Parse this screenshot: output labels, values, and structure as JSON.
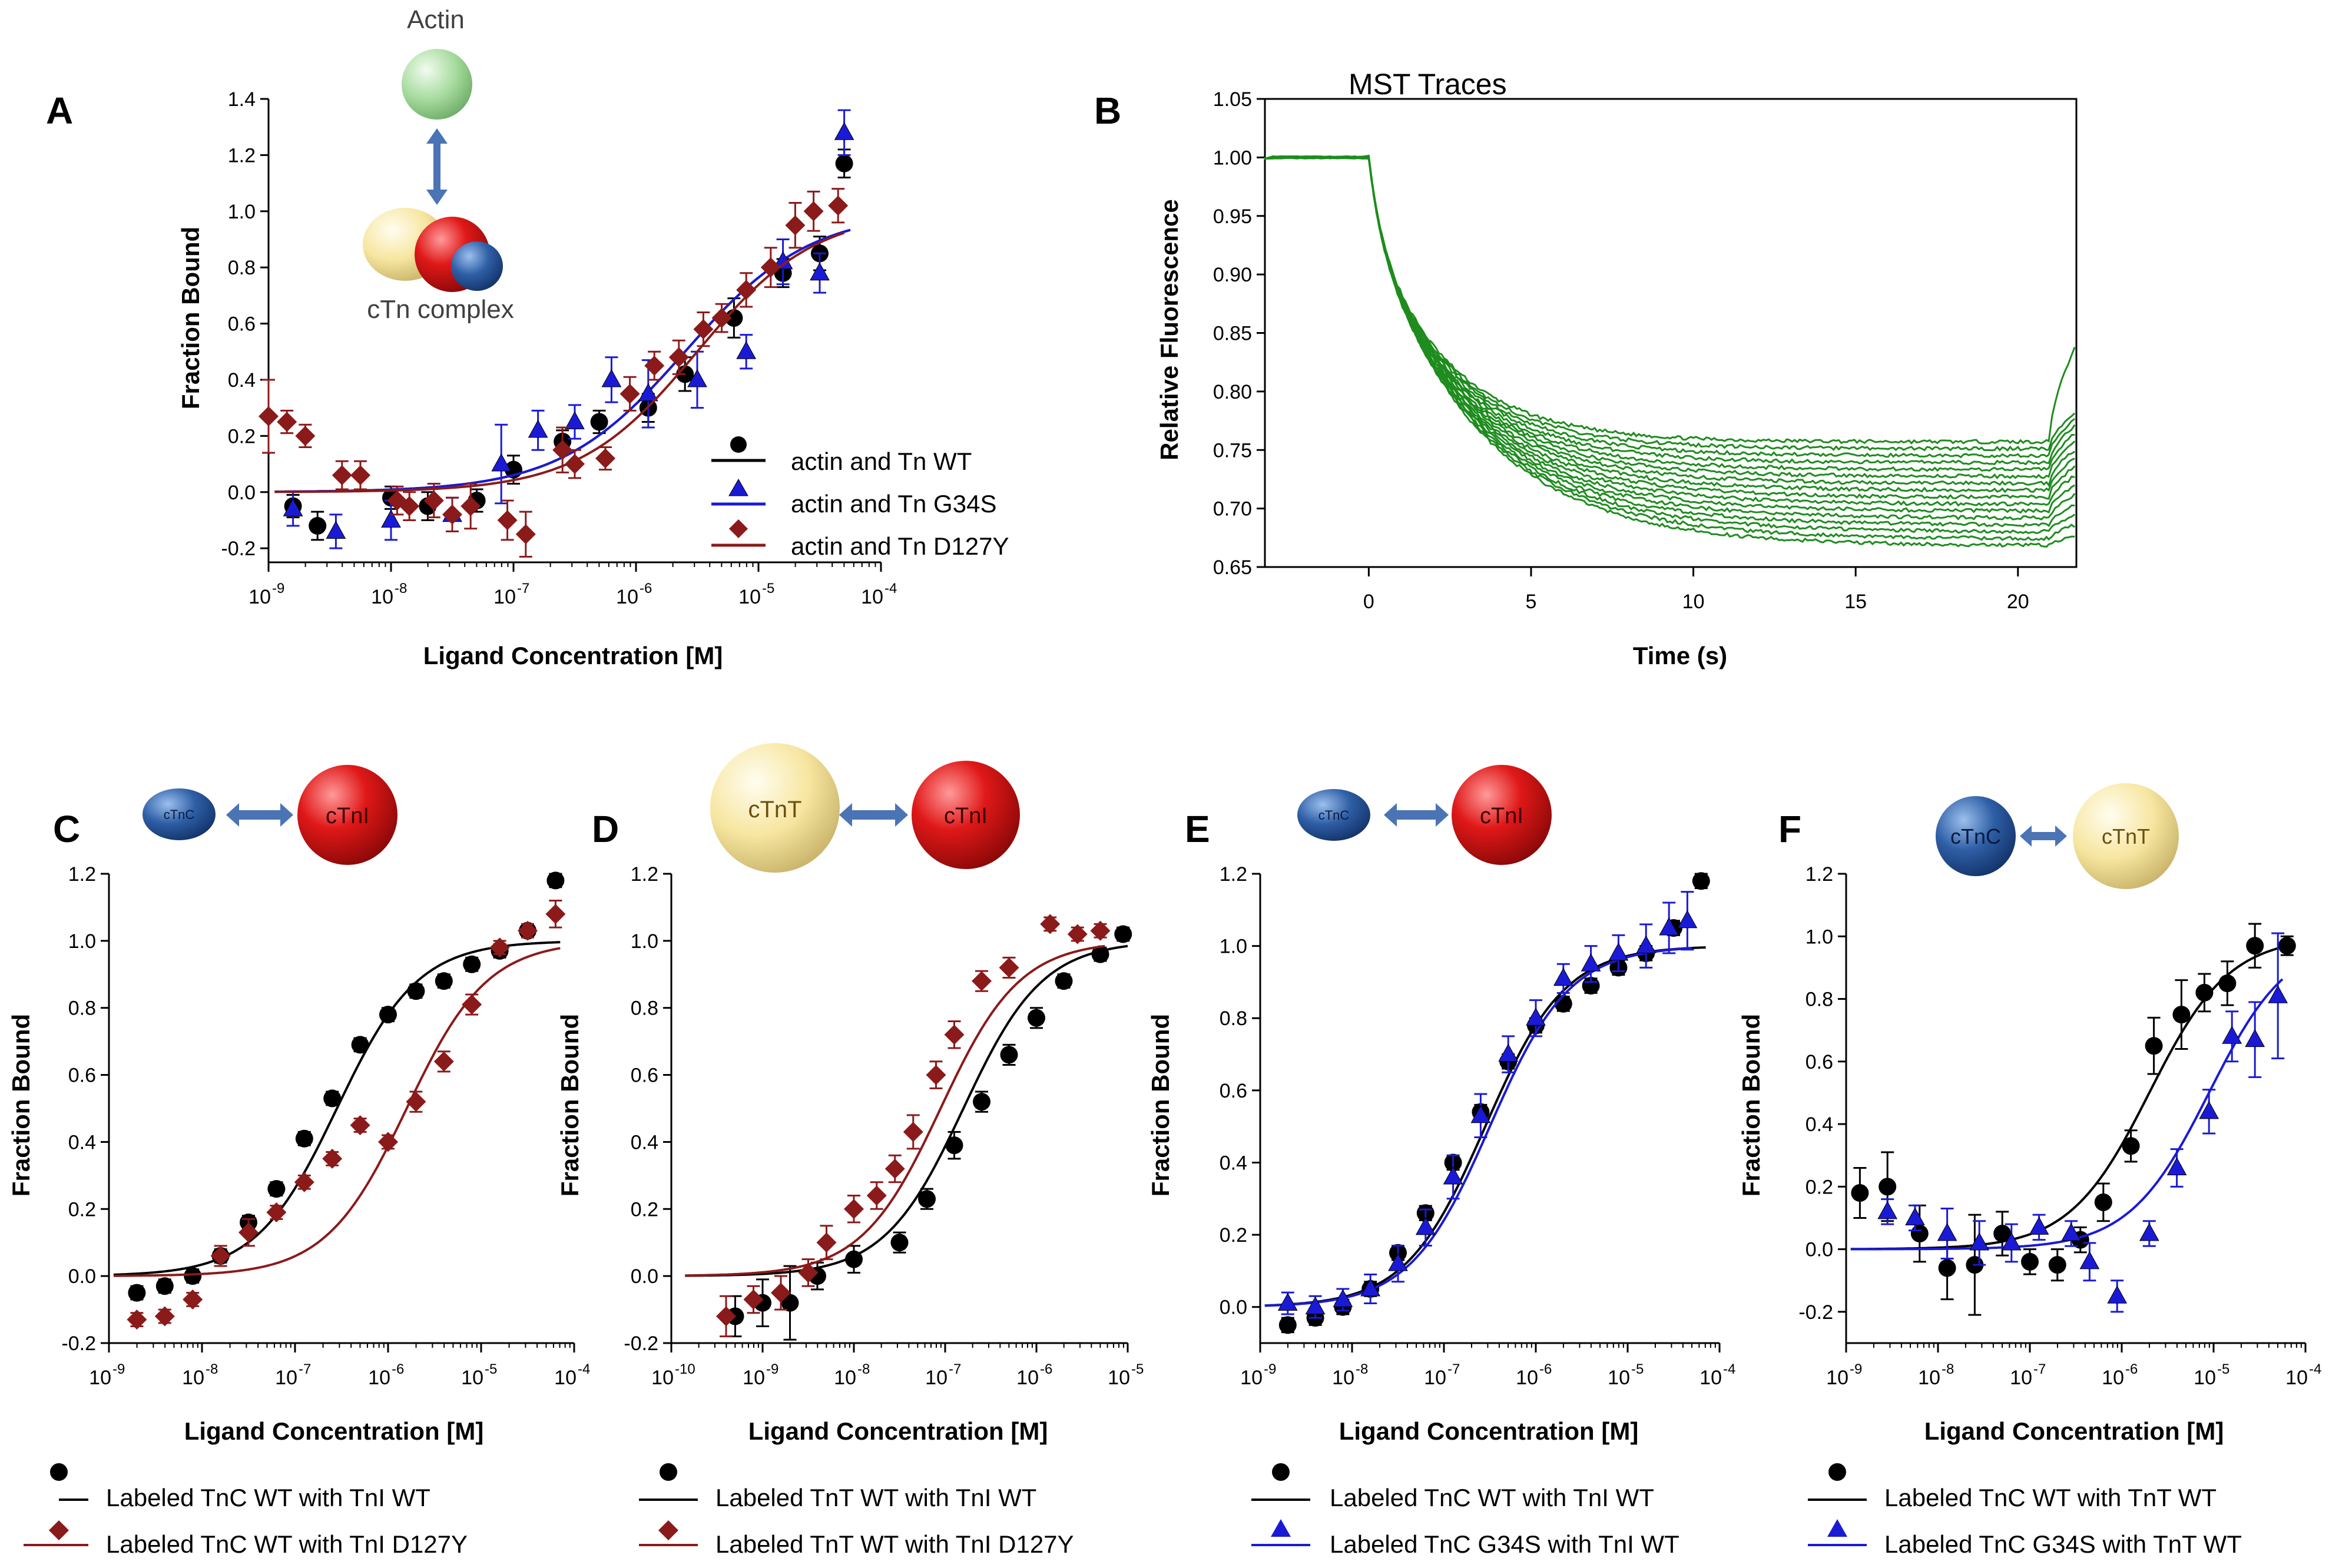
{
  "colors": {
    "black": "#000000",
    "darkred": "#8b1a1a",
    "blue": "#1a1ad6",
    "navy": "#1e3b8c",
    "green": "#1e8c1e",
    "actin_fill": "#a8dca0",
    "tnc_fill": "#2f5fa6",
    "tni_fill": "#d41414",
    "tnt_fill": "#f7e6a0",
    "arrow": "#4a74b4"
  },
  "chart_data": [
    {
      "id": "A",
      "type": "scatter",
      "panel_label": "A",
      "xlabel": "Ligand Concentration [M]",
      "ylabel": "Fraction Bound",
      "xscale": "log",
      "xlim_log10": [
        -9,
        -4
      ],
      "xtick_exponents": [
        -9,
        -8,
        -7,
        -6,
        -5,
        -4
      ],
      "ylim": [
        -0.25,
        1.4
      ],
      "yticks": [
        -0.2,
        0.0,
        0.2,
        0.4,
        0.6,
        0.8,
        1.0,
        1.2,
        1.4
      ],
      "ytick_labels": [
        "-0.2",
        "0.0",
        "0.2",
        "0.4",
        "0.6",
        "0.8",
        "1.0",
        "1.2",
        "1.4"
      ],
      "inset": {
        "top_label": "Actin",
        "bottom_label": "cTn complex"
      },
      "legend_position": "bottom-right",
      "series": [
        {
          "name": "actin and Tn WT",
          "color_key": "black",
          "marker": "circle",
          "x_log10": [
            -8.8,
            -8.6,
            -8.0,
            -7.7,
            -7.3,
            -7.0,
            -6.6,
            -6.3,
            -5.9,
            -5.6,
            -5.2,
            -4.8,
            -4.5,
            -4.3
          ],
          "y": [
            -0.05,
            -0.12,
            -0.02,
            -0.05,
            -0.03,
            0.08,
            0.18,
            0.25,
            0.3,
            0.42,
            0.62,
            0.78,
            0.85,
            1.17
          ],
          "err": [
            0.04,
            0.05,
            0.04,
            0.05,
            0.04,
            0.05,
            0.04,
            0.04,
            0.05,
            0.06,
            0.07,
            0.05,
            0.06,
            0.05
          ],
          "fit": {
            "top": 1.0,
            "bottom": 0.0,
            "log_ec50": -5.6,
            "hill": 0.85
          }
        },
        {
          "name": "actin and Tn G34S",
          "color_key": "blue",
          "marker": "triangle",
          "x_log10": [
            -8.8,
            -8.45,
            -8.0,
            -7.5,
            -7.1,
            -6.8,
            -6.5,
            -6.2,
            -5.9,
            -5.5,
            -5.1,
            -4.8,
            -4.5,
            -4.3
          ],
          "y": [
            -0.06,
            -0.14,
            -0.1,
            -0.08,
            0.1,
            0.22,
            0.25,
            0.4,
            0.35,
            0.4,
            0.5,
            0.82,
            0.78,
            1.28
          ],
          "err": [
            0.06,
            0.06,
            0.07,
            0.06,
            0.14,
            0.07,
            0.06,
            0.08,
            0.12,
            0.1,
            0.06,
            0.08,
            0.07,
            0.08
          ],
          "fit": {
            "top": 1.0,
            "bottom": 0.0,
            "log_ec50": -5.6,
            "hill": 0.85
          }
        },
        {
          "name": "actin and Tn D127Y",
          "color_key": "darkred",
          "marker": "diamond",
          "x_log10": [
            -9.0,
            -8.85,
            -8.7,
            -8.4,
            -8.25,
            -7.95,
            -7.85,
            -7.65,
            -7.5,
            -7.35,
            -7.05,
            -6.9,
            -6.6,
            -6.5,
            -6.25,
            -6.05,
            -5.85,
            -5.65,
            -5.45,
            -5.3,
            -5.1,
            -4.9,
            -4.7,
            -4.55,
            -4.35
          ],
          "y": [
            0.27,
            0.25,
            0.2,
            0.06,
            0.06,
            -0.03,
            -0.05,
            -0.03,
            -0.08,
            -0.05,
            -0.1,
            -0.15,
            0.15,
            0.1,
            0.12,
            0.35,
            0.45,
            0.48,
            0.58,
            0.62,
            0.72,
            0.8,
            0.95,
            1.0,
            1.02
          ],
          "err": [
            0.13,
            0.04,
            0.04,
            0.05,
            0.05,
            0.05,
            0.05,
            0.06,
            0.06,
            0.08,
            0.07,
            0.08,
            0.08,
            0.05,
            0.04,
            0.06,
            0.05,
            0.06,
            0.06,
            0.05,
            0.06,
            0.07,
            0.08,
            0.07,
            0.06
          ],
          "fit": {
            "top": 1.0,
            "bottom": 0.0,
            "log_ec50": -5.5,
            "hill": 0.9
          }
        }
      ]
    },
    {
      "id": "B",
      "type": "line",
      "panel_label": "B",
      "title": "MST Traces",
      "xlabel": "Time (s)",
      "ylabel": "Relative Fluorescence",
      "xlim": [
        -3.2,
        21.8
      ],
      "xticks": [
        0,
        5,
        10,
        15,
        20
      ],
      "xtick_labels": [
        "0",
        "5",
        "10",
        "15",
        "20"
      ],
      "ylim": [
        0.65,
        1.05
      ],
      "yticks": [
        0.65,
        0.7,
        0.75,
        0.8,
        0.85,
        0.9,
        0.95,
        1.0,
        1.05
      ],
      "ytick_labels": [
        "0.65",
        "0.70",
        "0.75",
        "0.80",
        "0.85",
        "0.90",
        "0.95",
        "1.00",
        "1.05"
      ],
      "trace_count": 16,
      "trace_start_value": 1.0,
      "trace_plateau_range": [
        0.668,
        0.757
      ],
      "trace_jump_time": 20.95,
      "trace_end_time": 21.8
    },
    {
      "id": "C",
      "type": "scatter",
      "panel_label": "C",
      "xlabel": "Ligand Concentration [M]",
      "ylabel": "Fraction Bound",
      "xscale": "log",
      "xlim_log10": [
        -9,
        -4
      ],
      "xtick_exponents": [
        -9,
        -8,
        -7,
        -6,
        -5,
        -4
      ],
      "ylim": [
        -0.2,
        1.2
      ],
      "yticks": [
        -0.2,
        0.0,
        0.2,
        0.4,
        0.6,
        0.8,
        1.0,
        1.2
      ],
      "ytick_labels": [
        "-0.2",
        "0.0",
        "0.2",
        "0.4",
        "0.6",
        "0.8",
        "1.0",
        "1.2"
      ],
      "inset": {
        "left_label": "cTnC",
        "right_label": "cTnI"
      },
      "series": [
        {
          "name": "Labeled TnC WT with TnI WT",
          "color_key": "black",
          "marker": "circle",
          "x_log10": [
            -8.7,
            -8.4,
            -8.1,
            -7.8,
            -7.5,
            -7.2,
            -6.9,
            -6.6,
            -6.3,
            -6.0,
            -5.7,
            -5.4,
            -5.1,
            -4.8,
            -4.5,
            -4.2
          ],
          "y": [
            -0.05,
            -0.03,
            0.0,
            0.06,
            0.16,
            0.26,
            0.41,
            0.53,
            0.69,
            0.78,
            0.85,
            0.88,
            0.93,
            0.97,
            1.03,
            1.18
          ],
          "err": [
            0.02,
            0.02,
            0.02,
            0.02,
            0.02,
            0.02,
            0.02,
            0.02,
            0.02,
            0.02,
            0.02,
            0.02,
            0.02,
            0.02,
            0.02,
            0.02
          ],
          "fit": {
            "top": 1.0,
            "bottom": 0.0,
            "log_ec50": -6.55,
            "hill": 1.0
          }
        },
        {
          "name": "Labeled TnC WT with TnI D127Y",
          "color_key": "darkred",
          "marker": "diamond",
          "x_log10": [
            -8.7,
            -8.4,
            -8.1,
            -7.8,
            -7.5,
            -7.2,
            -6.9,
            -6.6,
            -6.3,
            -6.0,
            -5.7,
            -5.4,
            -5.1,
            -4.8,
            -4.5,
            -4.2
          ],
          "y": [
            -0.13,
            -0.12,
            -0.07,
            0.06,
            0.13,
            0.19,
            0.28,
            0.35,
            0.45,
            0.4,
            0.52,
            0.64,
            0.81,
            0.98,
            1.03,
            1.08
          ],
          "err": [
            0.02,
            0.02,
            0.02,
            0.03,
            0.04,
            0.02,
            0.02,
            0.02,
            0.02,
            0.02,
            0.03,
            0.03,
            0.03,
            0.02,
            0.02,
            0.04
          ],
          "fit": {
            "top": 1.0,
            "bottom": 0.0,
            "log_ec50": -5.8,
            "hill": 1.0
          }
        }
      ],
      "legend": [
        "Labeled TnC WT with TnI WT",
        "Labeled TnC WT with TnI D127Y"
      ]
    },
    {
      "id": "D",
      "type": "scatter",
      "panel_label": "D",
      "xlabel": "Ligand Concentration [M]",
      "ylabel": "Fraction Bound",
      "xscale": "log",
      "xlim_log10": [
        -10,
        -5
      ],
      "xtick_exponents": [
        -10,
        -9,
        -8,
        -7,
        -6,
        -5
      ],
      "ylim": [
        -0.2,
        1.2
      ],
      "yticks": [
        -0.2,
        0.0,
        0.2,
        0.4,
        0.6,
        0.8,
        1.0,
        1.2
      ],
      "ytick_labels": [
        "-0.2",
        "0.0",
        "0.2",
        "0.4",
        "0.6",
        "0.8",
        "1.0",
        "1.2"
      ],
      "inset": {
        "left_label": "cTnT",
        "right_label": "cTnI"
      },
      "series": [
        {
          "name": "Labeled TnT WT with TnI WT",
          "color_key": "black",
          "marker": "circle",
          "x_log10": [
            -9.3,
            -9.0,
            -8.7,
            -8.4,
            -8.0,
            -7.5,
            -7.2,
            -6.9,
            -6.6,
            -6.3,
            -6.0,
            -5.7,
            -5.3,
            -5.05
          ],
          "y": [
            -0.12,
            -0.08,
            -0.08,
            0.0,
            0.05,
            0.1,
            0.23,
            0.39,
            0.52,
            0.66,
            0.77,
            0.88,
            0.96,
            1.02
          ],
          "err": [
            0.06,
            0.07,
            0.11,
            0.04,
            0.04,
            0.03,
            0.03,
            0.04,
            0.03,
            0.03,
            0.03,
            0.02,
            0.02,
            0.02
          ],
          "fit": {
            "top": 1.0,
            "bottom": 0.0,
            "log_ec50": -6.8,
            "hill": 1.0
          }
        },
        {
          "name": "Labeled TnT WT with TnI D127Y",
          "color_key": "darkred",
          "marker": "diamond",
          "x_log10": [
            -9.4,
            -9.1,
            -8.8,
            -8.5,
            -8.3,
            -8.0,
            -7.75,
            -7.55,
            -7.35,
            -7.1,
            -6.9,
            -6.6,
            -6.3,
            -5.85,
            -5.55,
            -5.3
          ],
          "y": [
            -0.12,
            -0.07,
            -0.05,
            0.01,
            0.1,
            0.2,
            0.24,
            0.32,
            0.43,
            0.6,
            0.72,
            0.88,
            0.92,
            1.05,
            1.02,
            1.03
          ],
          "err": [
            0.06,
            0.04,
            0.05,
            0.04,
            0.05,
            0.04,
            0.04,
            0.04,
            0.05,
            0.04,
            0.04,
            0.03,
            0.03,
            0.02,
            0.02,
            0.02
          ],
          "fit": {
            "top": 1.0,
            "bottom": 0.0,
            "log_ec50": -7.05,
            "hill": 1.0
          }
        }
      ],
      "legend": [
        "Labeled TnT WT with TnI WT",
        "Labeled TnT WT with TnI D127Y"
      ]
    },
    {
      "id": "E",
      "type": "scatter",
      "panel_label": "E",
      "xlabel": "Ligand Concentration [M]",
      "ylabel": "Fraction Bound",
      "xscale": "log",
      "xlim_log10": [
        -9,
        -4
      ],
      "xtick_exponents": [
        -9,
        -8,
        -7,
        -6,
        -5,
        -4
      ],
      "ylim": [
        -0.1,
        1.2
      ],
      "yticks": [
        0.0,
        0.2,
        0.4,
        0.6,
        0.8,
        1.0,
        1.2
      ],
      "ytick_labels": [
        "0.0",
        "0.2",
        "0.4",
        "0.6",
        "0.8",
        "1.0",
        "1.2"
      ],
      "inset": {
        "left_label": "cTnC",
        "right_label": "cTnI"
      },
      "series": [
        {
          "name": "Labeled TnC WT with TnI WT",
          "color_key": "black",
          "marker": "circle",
          "x_log10": [
            -8.7,
            -8.4,
            -8.1,
            -7.8,
            -7.5,
            -7.2,
            -6.9,
            -6.6,
            -6.3,
            -6.0,
            -5.7,
            -5.4,
            -5.1,
            -4.8,
            -4.5,
            -4.2
          ],
          "y": [
            -0.05,
            -0.03,
            0.0,
            0.05,
            0.15,
            0.26,
            0.4,
            0.54,
            0.68,
            0.78,
            0.84,
            0.89,
            0.94,
            0.98,
            1.05,
            1.18
          ],
          "err": [
            0.02,
            0.02,
            0.02,
            0.02,
            0.02,
            0.02,
            0.02,
            0.02,
            0.02,
            0.02,
            0.02,
            0.02,
            0.02,
            0.02,
            0.02,
            0.02
          ],
          "fit": {
            "top": 1.0,
            "bottom": 0.0,
            "log_ec50": -6.55,
            "hill": 1.0
          }
        },
        {
          "name": "Labeled TnC G34S with TnI WT",
          "color_key": "blue",
          "marker": "triangle",
          "x_log10": [
            -8.7,
            -8.4,
            -8.1,
            -7.8,
            -7.5,
            -7.2,
            -6.9,
            -6.6,
            -6.3,
            -6.0,
            -5.7,
            -5.4,
            -5.1,
            -4.8,
            -4.55,
            -4.35
          ],
          "y": [
            0.01,
            0.0,
            0.02,
            0.05,
            0.12,
            0.22,
            0.36,
            0.53,
            0.7,
            0.8,
            0.91,
            0.95,
            0.98,
            1.0,
            1.05,
            1.07
          ],
          "err": [
            0.03,
            0.03,
            0.03,
            0.04,
            0.05,
            0.05,
            0.06,
            0.06,
            0.05,
            0.05,
            0.04,
            0.05,
            0.05,
            0.06,
            0.07,
            0.08
          ],
          "fit": {
            "top": 1.0,
            "bottom": 0.0,
            "log_ec50": -6.5,
            "hill": 1.0
          }
        }
      ],
      "legend": [
        "Labeled TnC WT with TnI WT",
        "Labeled TnC G34S with TnI WT"
      ]
    },
    {
      "id": "F",
      "type": "scatter",
      "panel_label": "F",
      "xlabel": "Ligand Concentration [M]",
      "ylabel": "Fraction Bound",
      "xscale": "log",
      "xlim_log10": [
        -9,
        -4
      ],
      "xtick_exponents": [
        -9,
        -8,
        -7,
        -6,
        -5,
        -4
      ],
      "ylim": [
        -0.3,
        1.2
      ],
      "yticks": [
        -0.2,
        0.0,
        0.2,
        0.4,
        0.6,
        0.8,
        1.0,
        1.2
      ],
      "ytick_labels": [
        "-0.2",
        "0.0",
        "0.2",
        "0.4",
        "0.6",
        "0.8",
        "1.0",
        "1.2"
      ],
      "inset": {
        "left_label": "cTnC",
        "right_label": "cTnT"
      },
      "series": [
        {
          "name": "Labeled TnC WT with TnT WT",
          "color_key": "black",
          "marker": "circle",
          "x_log10": [
            -8.85,
            -8.55,
            -8.2,
            -7.9,
            -7.6,
            -7.3,
            -7.0,
            -6.7,
            -6.45,
            -6.2,
            -5.9,
            -5.65,
            -5.35,
            -5.1,
            -4.85,
            -4.55,
            -4.2
          ],
          "y": [
            0.18,
            0.2,
            0.05,
            -0.06,
            -0.05,
            0.05,
            -0.04,
            -0.05,
            0.03,
            0.15,
            0.33,
            0.65,
            0.75,
            0.82,
            0.85,
            0.97,
            0.97
          ],
          "err": [
            0.08,
            0.11,
            0.09,
            0.1,
            0.16,
            0.07,
            0.04,
            0.05,
            0.04,
            0.06,
            0.05,
            0.09,
            0.11,
            0.06,
            0.07,
            0.07,
            0.03
          ],
          "fit": {
            "top": 1.0,
            "bottom": 0.0,
            "log_ec50": -5.7,
            "hill": 1.0
          }
        },
        {
          "name": "Labeled TnC G34S with TnT WT",
          "color_key": "blue",
          "marker": "triangle",
          "x_log10": [
            -8.55,
            -8.25,
            -7.9,
            -7.55,
            -7.2,
            -6.9,
            -6.55,
            -6.35,
            -6.05,
            -5.7,
            -5.4,
            -5.05,
            -4.8,
            -4.55,
            -4.3
          ],
          "y": [
            0.12,
            0.1,
            0.05,
            0.02,
            0.02,
            0.07,
            0.05,
            -0.04,
            -0.15,
            0.05,
            0.26,
            0.44,
            0.68,
            0.67,
            0.81
          ],
          "err": [
            0.04,
            0.04,
            0.08,
            0.07,
            0.06,
            0.04,
            0.04,
            0.06,
            0.05,
            0.04,
            0.06,
            0.07,
            0.08,
            0.12,
            0.2
          ],
          "fit": {
            "top": 1.0,
            "bottom": 0.0,
            "log_ec50": -5.05,
            "hill": 1.0
          }
        }
      ],
      "legend": [
        "Labeled TnC WT with TnT WT",
        "Labeled TnC G34S with TnT WT"
      ]
    }
  ]
}
